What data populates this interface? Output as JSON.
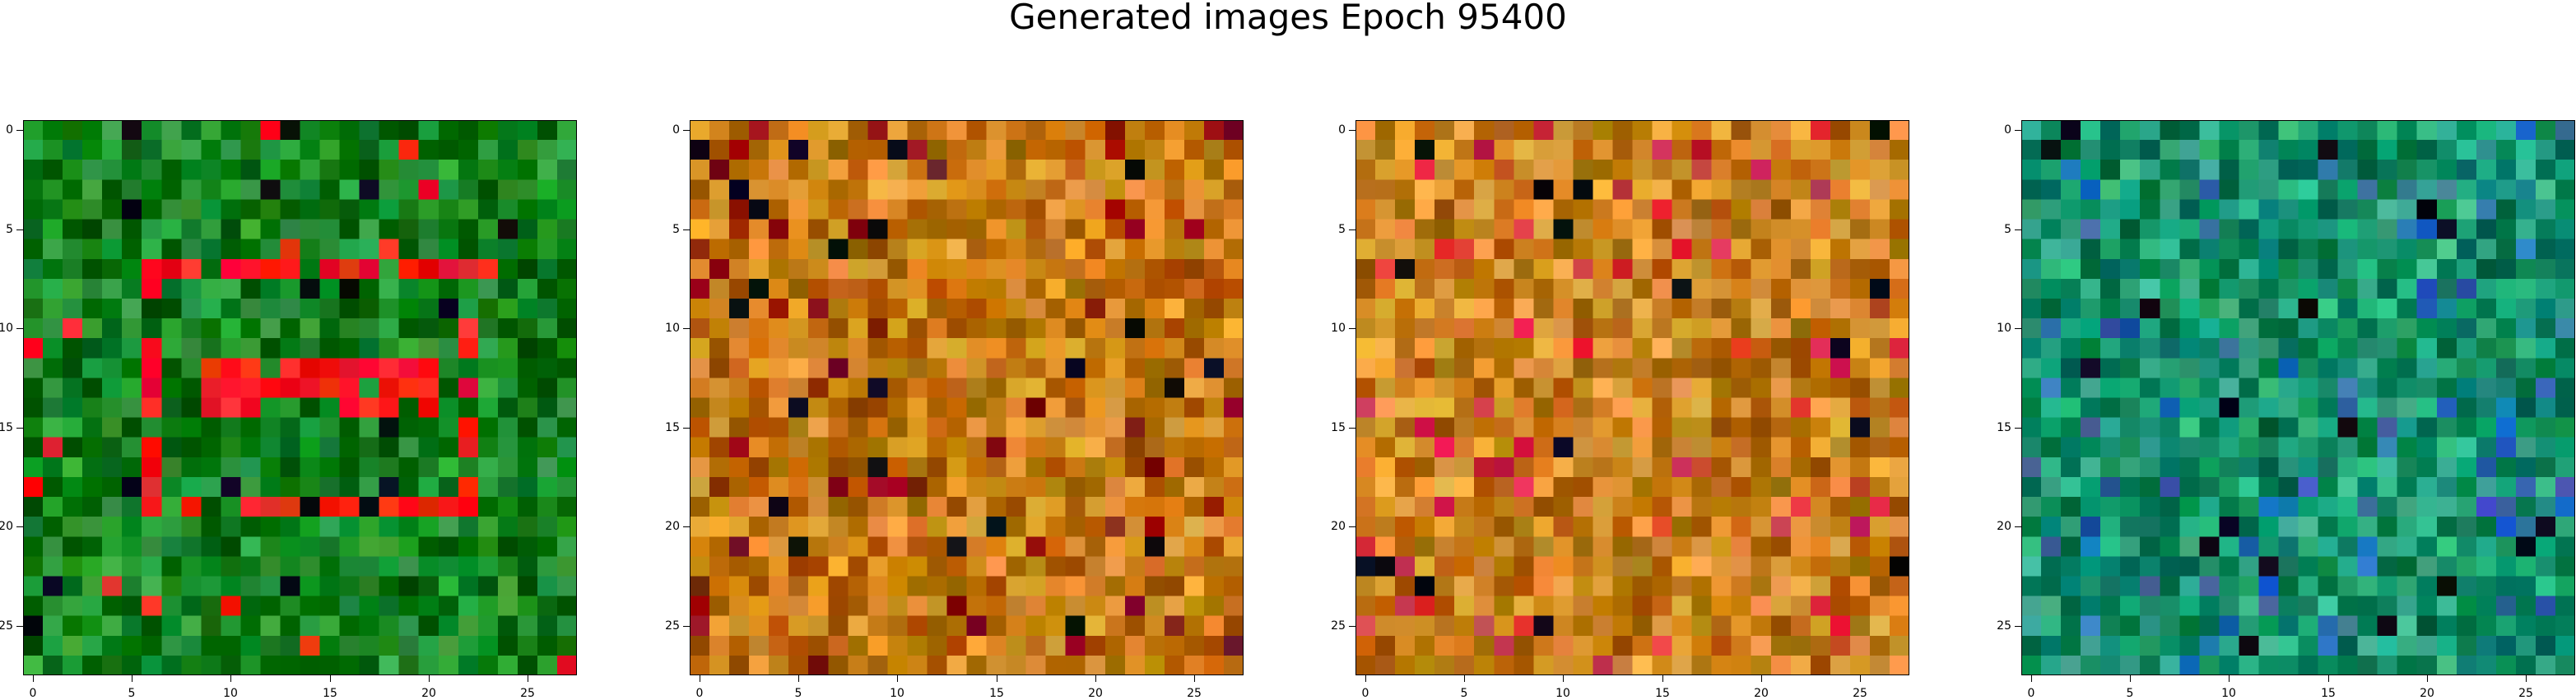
{
  "title": "Generated images Epoch 95400",
  "chart_data": [
    {
      "type": "heatmap",
      "xlim": [
        -0.5,
        27.5
      ],
      "ylim": [
        27.5,
        -0.5
      ],
      "xticks": [
        "0",
        "5",
        "10",
        "15",
        "20",
        "25"
      ],
      "yticks": [
        "0",
        "5",
        "10",
        "15",
        "20",
        "25"
      ],
      "grid": false,
      "base_color": "#0e7f1c",
      "highlight_color": "#ff1a1a",
      "description_values": {
        "rows": 28,
        "cols": 28
      }
    },
    {
      "type": "heatmap",
      "xlim": [
        -0.5,
        27.5
      ],
      "ylim": [
        27.5,
        -0.5
      ],
      "xticks": [
        "0",
        "5",
        "10",
        "15",
        "20",
        "25"
      ],
      "yticks": [
        "0",
        "5",
        "10",
        "15",
        "20",
        "25"
      ],
      "grid": false,
      "base_color": "#c57a12",
      "highlight_color": "#8a1010",
      "description_values": {
        "rows": 28,
        "cols": 28
      }
    },
    {
      "type": "heatmap",
      "xlim": [
        -0.5,
        27.5
      ],
      "ylim": [
        27.5,
        -0.5
      ],
      "xticks": [
        "0",
        "5",
        "10",
        "15",
        "20",
        "25"
      ],
      "yticks": [
        "0",
        "5",
        "10",
        "15",
        "20",
        "25"
      ],
      "grid": false,
      "base_color": "#c8801e",
      "highlight_color": "#d03040",
      "description_values": {
        "rows": 28,
        "cols": 28
      }
    },
    {
      "type": "heatmap",
      "xlim": [
        -0.5,
        27.5
      ],
      "ylim": [
        27.5,
        -0.5
      ],
      "xticks": [
        "0",
        "5",
        "10",
        "15",
        "20",
        "25"
      ],
      "yticks": [
        "0",
        "5",
        "10",
        "15",
        "20",
        "25"
      ],
      "grid": false,
      "base_color": "#12906a",
      "highlight_color": "#2a6ab0",
      "description_values": {
        "rows": 28,
        "cols": 28
      }
    }
  ]
}
